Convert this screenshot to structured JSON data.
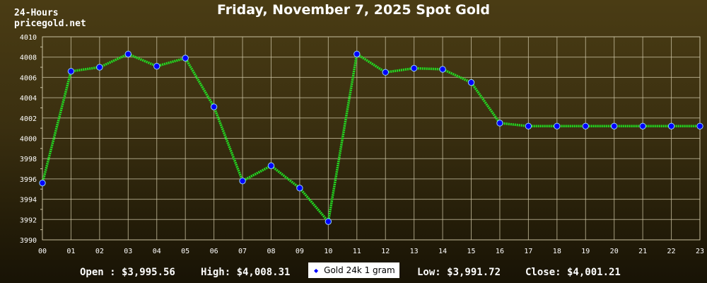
{
  "header": {
    "range_label": "24-Hours",
    "site_label": "pricegold.net"
  },
  "stats": {
    "open": "Open : $3,995.56",
    "high": "High: $4,008.31",
    "low": "Low: $3,991.72",
    "close": "Close: $4,001.21"
  },
  "colors": {
    "line": "#22dd22",
    "marker": "#0000ff",
    "grid": "#cfc7a8",
    "axis_text": "#ffffff"
  },
  "chart_data": {
    "type": "line",
    "title": "Friday, November 7, 2025 Spot Gold",
    "xlabel": "",
    "ylabel": "",
    "categories": [
      "00",
      "01",
      "02",
      "03",
      "04",
      "05",
      "06",
      "07",
      "08",
      "09",
      "10",
      "11",
      "12",
      "13",
      "14",
      "15",
      "16",
      "17",
      "18",
      "19",
      "20",
      "21",
      "22",
      "23"
    ],
    "yticks": [
      3990,
      3992,
      3994,
      3996,
      3998,
      4000,
      4002,
      4004,
      4006,
      4008,
      4010
    ],
    "ylim": [
      3990,
      4010
    ],
    "grid": true,
    "legend_position": "bottom-center",
    "series": [
      {
        "name": "Gold 24k 1 gram",
        "values": [
          3995.6,
          4006.6,
          4007.0,
          4008.3,
          4007.1,
          4007.9,
          4003.1,
          3995.8,
          3997.3,
          3995.1,
          3991.8,
          4008.3,
          4006.5,
          4006.9,
          4006.8,
          4005.5,
          4001.5,
          4001.2,
          4001.2,
          4001.2,
          4001.2,
          4001.2,
          4001.2,
          4001.2
        ]
      }
    ]
  }
}
